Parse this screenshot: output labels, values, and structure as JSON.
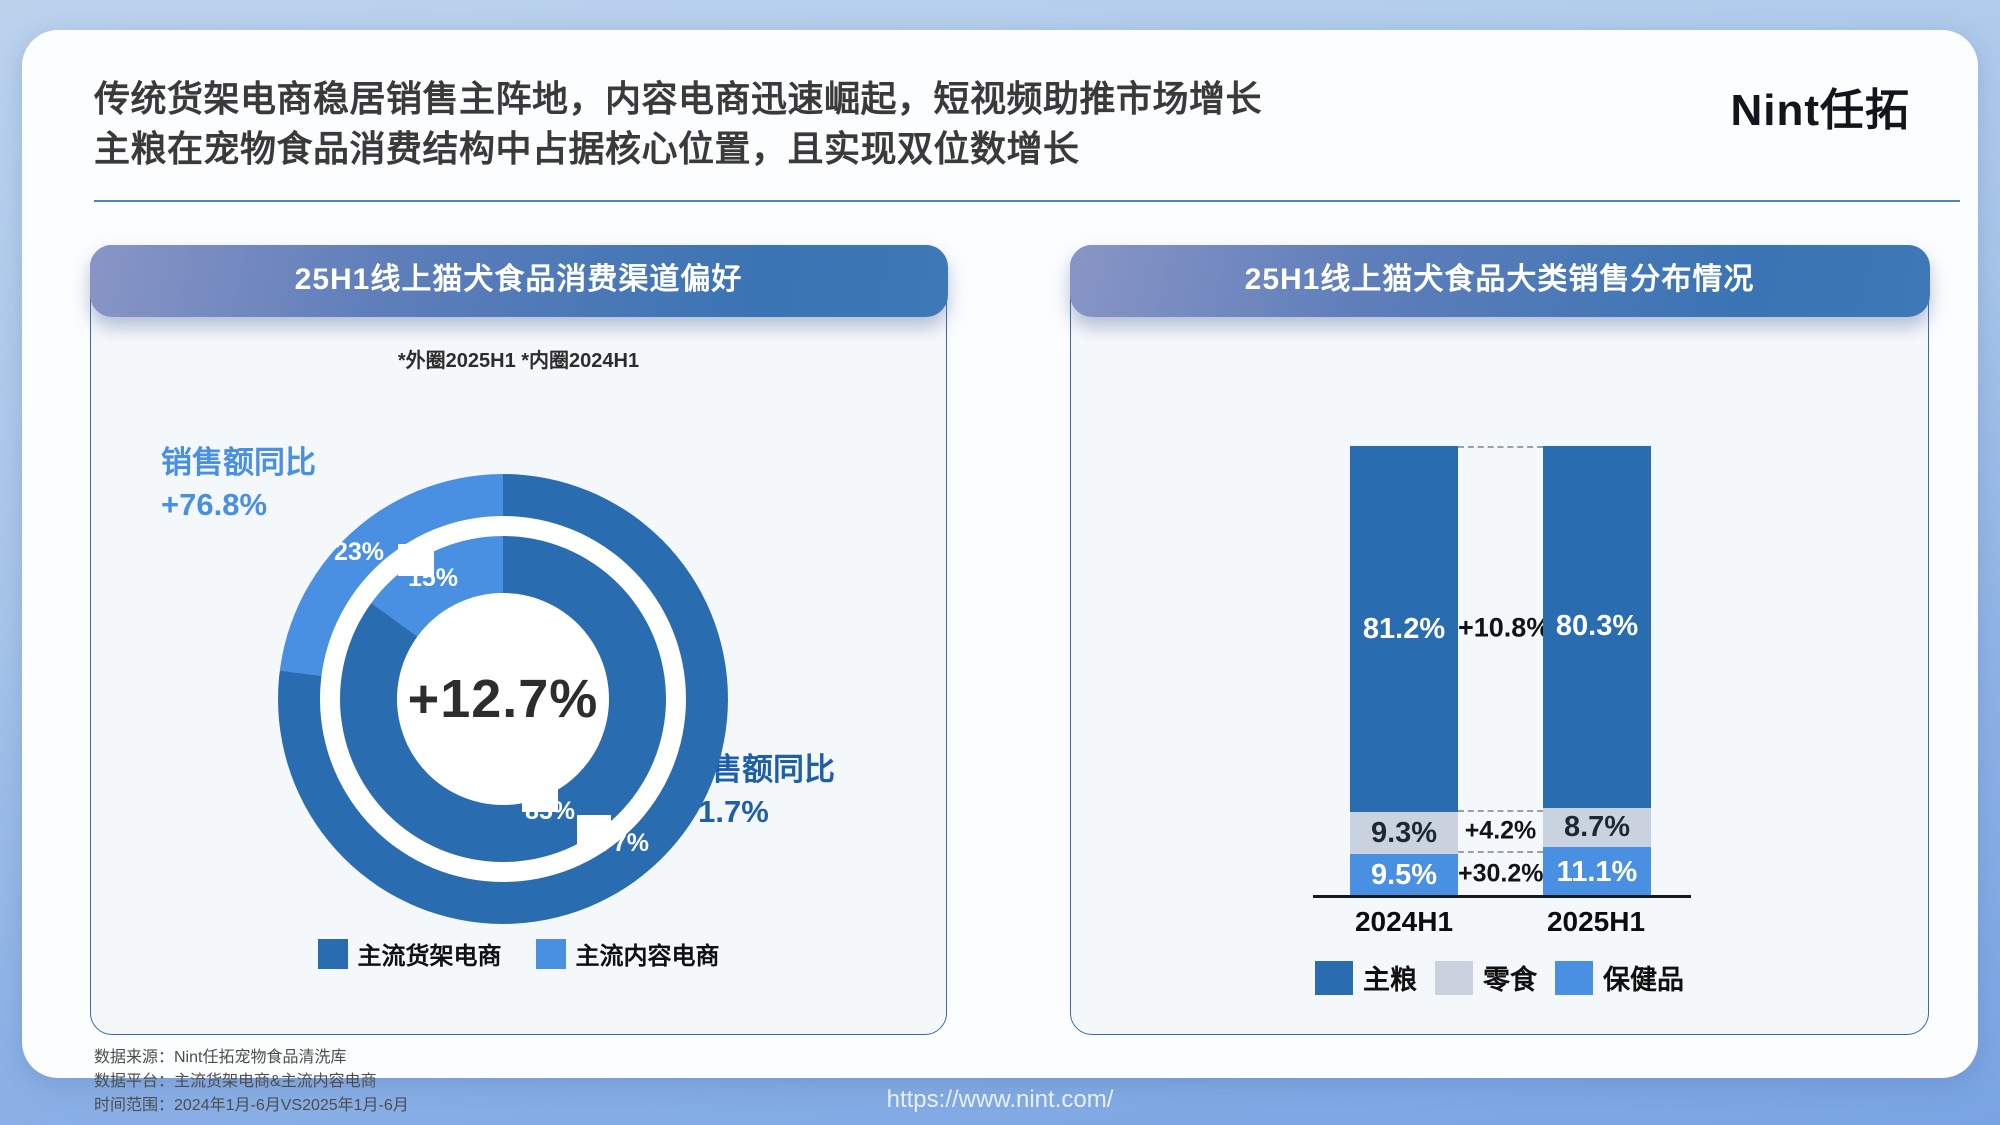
{
  "page": {
    "title_line1": "传统货架电商稳居销售主阵地，内容电商迅速崛起，短视频助推市场增长",
    "title_line2": "主粮在宠物食品消费结构中占据核心位置，且实现双位数增长",
    "logo_text": "Nint任拓",
    "footer_line1": "数据来源：Nint任拓宠物食品清洗库",
    "footer_line2": "数据平台：主流货架电商&主流内容电商",
    "footer_line3": "时间范围：2024年1月-6月VS2025年1月-6月",
    "url": "https://www.nint.com/"
  },
  "colors": {
    "dark_blue": "#2A6CB0",
    "light_blue": "#4A90E2",
    "gray": "#C9D2DE",
    "header_gradient_start": "#8995C6",
    "header_gradient_end": "#3A74B4"
  },
  "left_panel": {
    "header": "25H1线上猫犬食品消费渠道偏好",
    "subtitle": "*外圈2025H1  *内圈2024H1",
    "callout_left_line1": "销售额同比",
    "callout_left_line2": "+76.8%",
    "callout_right_line1": "销售额同比",
    "callout_right_line2": "+1.7%",
    "center_value": "+12.7%",
    "legend": [
      {
        "label": "主流货架电商",
        "color": "#2A6CB0"
      },
      {
        "label": "主流内容电商",
        "color": "#4A90E2"
      }
    ]
  },
  "right_panel": {
    "header": "25H1线上猫犬食品大类销售分布情况",
    "legend": [
      {
        "label": "主粮",
        "color": "#2A6CB0"
      },
      {
        "label": "零食",
        "color": "#C9D2DE"
      },
      {
        "label": "保健品",
        "color": "#4A90E2"
      }
    ]
  },
  "chart_data": [
    {
      "type": "pie",
      "variant": "double-donut",
      "title": "25H1线上猫犬食品消费渠道偏好",
      "note": "*外圈2025H1 *内圈2024H1",
      "center_label": "+12.7%",
      "rings": [
        {
          "name": "2025H1",
          "position": "outer",
          "segments": [
            {
              "label": "主流货架电商",
              "value": 77,
              "display": "77%",
              "color": "#2A6CB0"
            },
            {
              "label": "主流内容电商",
              "value": 23,
              "display": "23%",
              "color": "#4A90E2"
            }
          ]
        },
        {
          "name": "2024H1",
          "position": "inner",
          "segments": [
            {
              "label": "主流货架电商",
              "value": 85,
              "display": "85%",
              "color": "#2A6CB0"
            },
            {
              "label": "主流内容电商",
              "value": 15,
              "display": "15%",
              "color": "#4A90E2"
            }
          ]
        }
      ],
      "annotations": [
        {
          "series": "主流内容电商",
          "text": "销售额同比 +76.8%"
        },
        {
          "series": "主流货架电商",
          "text": "销售额同比 +1.7%"
        }
      ],
      "legend_position": "bottom"
    },
    {
      "type": "bar",
      "variant": "stacked-100",
      "title": "25H1线上猫犬食品大类销售分布情况",
      "categories": [
        "2024H1",
        "2025H1"
      ],
      "series": [
        {
          "name": "主粮",
          "color": "#2A6CB0",
          "label_color": "#FFFFFF",
          "values": [
            81.2,
            80.3
          ],
          "labels": [
            "81.2%",
            "80.3%"
          ],
          "growth": "+10.8%"
        },
        {
          "name": "零食",
          "color": "#C9D2DE",
          "label_color": "#1D2835",
          "values": [
            9.3,
            8.7
          ],
          "labels": [
            "9.3%",
            "8.7%"
          ],
          "growth": "+4.2%"
        },
        {
          "name": "保健品",
          "color": "#4A90E2",
          "label_color": "#FFFFFF",
          "values": [
            9.5,
            11.1
          ],
          "labels": [
            "9.5%",
            "11.1%"
          ],
          "growth": "+30.2%"
        }
      ],
      "ylim": [
        0,
        100
      ],
      "grid": false,
      "legend_position": "bottom"
    }
  ]
}
